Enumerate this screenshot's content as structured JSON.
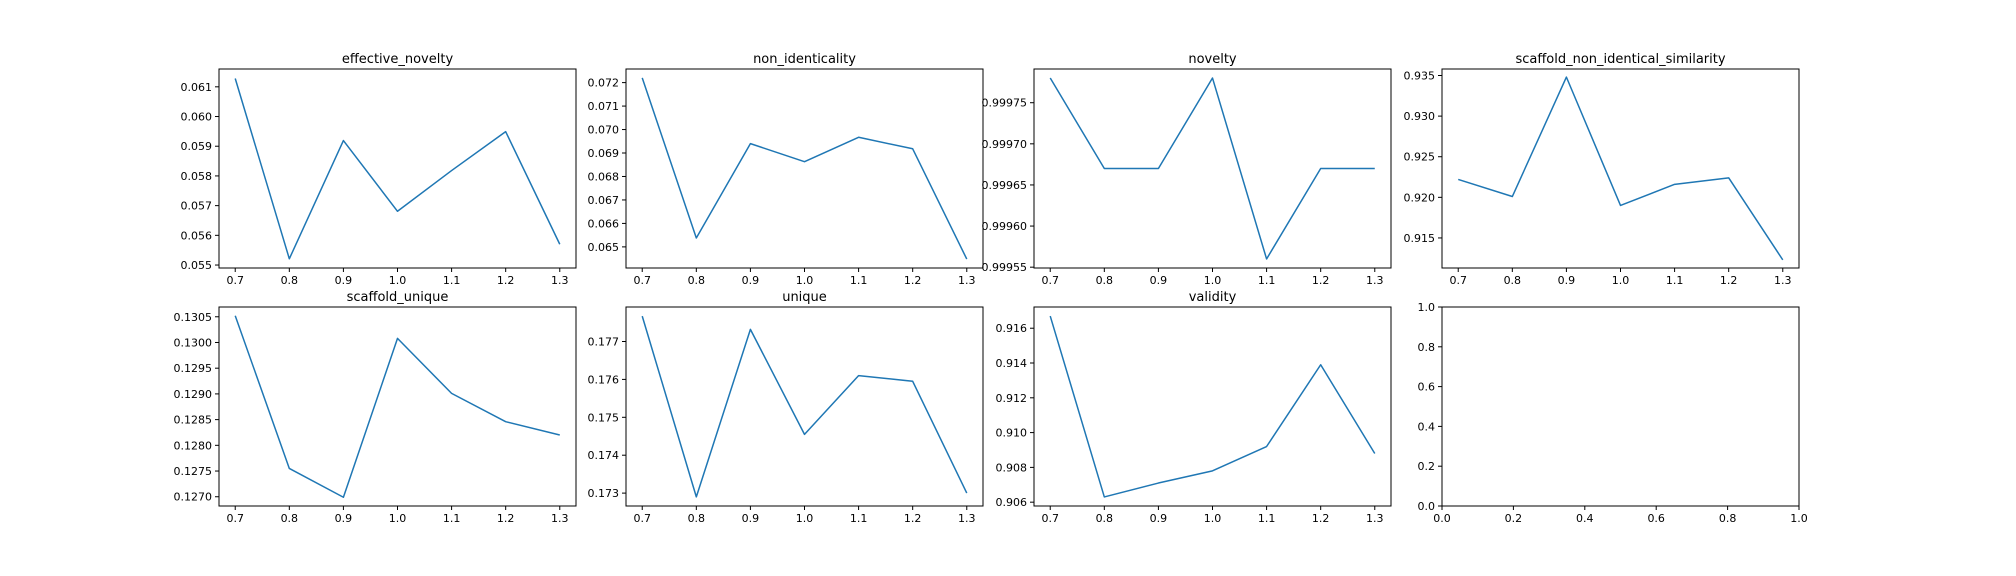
{
  "colors": {
    "line": "#1f77b4"
  },
  "chart_data": [
    {
      "type": "line",
      "title": "effective_novelty",
      "x": [
        0.7,
        0.8,
        0.9,
        1.0,
        1.1,
        1.2,
        1.3
      ],
      "values": [
        0.06128,
        0.05521,
        0.05919,
        0.05681,
        0.05818,
        0.05949,
        0.0557
      ],
      "xlim": [
        0.67,
        1.33
      ],
      "ylim": [
        0.0549,
        0.0616
      ],
      "xticks": [
        "0.7",
        "0.8",
        "0.9",
        "1.0",
        "1.1",
        "1.2",
        "1.3"
      ],
      "yticks": [
        "0.055",
        "0.056",
        "0.057",
        "0.058",
        "0.059",
        "0.060",
        "0.061"
      ],
      "ytick_values": [
        0.055,
        0.056,
        0.057,
        0.058,
        0.059,
        0.06,
        0.061
      ]
    },
    {
      "type": "line",
      "title": "non_identicality",
      "x": [
        0.7,
        0.8,
        0.9,
        1.0,
        1.1,
        1.2,
        1.3
      ],
      "values": [
        0.0722,
        0.06538,
        0.0694,
        0.06863,
        0.06967,
        0.06918,
        0.06448
      ],
      "xlim": [
        0.67,
        1.33
      ],
      "ylim": [
        0.0641,
        0.07258
      ],
      "xticks": [
        "0.7",
        "0.8",
        "0.9",
        "1.0",
        "1.1",
        "1.2",
        "1.3"
      ],
      "yticks": [
        "0.065",
        "0.066",
        "0.067",
        "0.068",
        "0.069",
        "0.070",
        "0.071",
        "0.072"
      ],
      "ytick_values": [
        0.065,
        0.066,
        0.067,
        0.068,
        0.069,
        0.07,
        0.071,
        0.072
      ]
    },
    {
      "type": "line",
      "title": "novelty",
      "x": [
        0.7,
        0.8,
        0.9,
        1.0,
        1.1,
        1.2,
        1.3
      ],
      "values": [
        0.99978,
        0.99967,
        0.99967,
        0.99978,
        0.99956,
        0.99967,
        0.99967
      ],
      "xlim": [
        0.67,
        1.33
      ],
      "ylim": [
        0.999549,
        0.999791
      ],
      "xticks": [
        "0.7",
        "0.8",
        "0.9",
        "1.0",
        "1.1",
        "1.2",
        "1.3"
      ],
      "yticks": [
        "0.99955",
        "0.99960",
        "0.99965",
        "0.99970",
        "0.99975"
      ],
      "ytick_values": [
        0.99955,
        0.9996,
        0.99965,
        0.9997,
        0.99975
      ]
    },
    {
      "type": "line",
      "title": "scaffold_non_identical_similarity",
      "x": [
        0.7,
        0.8,
        0.9,
        1.0,
        1.1,
        1.2,
        1.3
      ],
      "values": [
        0.9222,
        0.9201,
        0.9348,
        0.919,
        0.9216,
        0.9224,
        0.9123
      ],
      "xlim": [
        0.67,
        1.33
      ],
      "ylim": [
        0.9113,
        0.9358
      ],
      "xticks": [
        "0.7",
        "0.8",
        "0.9",
        "1.0",
        "1.1",
        "1.2",
        "1.3"
      ],
      "yticks": [
        "0.915",
        "0.920",
        "0.925",
        "0.930",
        "0.935"
      ],
      "ytick_values": [
        0.915,
        0.92,
        0.925,
        0.93,
        0.935
      ]
    },
    {
      "type": "line",
      "title": "scaffold_unique",
      "x": [
        0.7,
        0.8,
        0.9,
        1.0,
        1.1,
        1.2,
        1.3
      ],
      "values": [
        0.13052,
        0.12755,
        0.12699,
        0.13008,
        0.12901,
        0.12846,
        0.1282
      ],
      "xlim": [
        0.67,
        1.33
      ],
      "ylim": [
        0.12682,
        0.13069
      ],
      "xticks": [
        "0.7",
        "0.8",
        "0.9",
        "1.0",
        "1.1",
        "1.2",
        "1.3"
      ],
      "yticks": [
        "0.1270",
        "0.1275",
        "0.1280",
        "0.1285",
        "0.1290",
        "0.1295",
        "0.1300",
        "0.1305"
      ],
      "ytick_values": [
        0.127,
        0.1275,
        0.128,
        0.1285,
        0.129,
        0.1295,
        0.13,
        0.1305
      ]
    },
    {
      "type": "line",
      "title": "unique",
      "x": [
        0.7,
        0.8,
        0.9,
        1.0,
        1.1,
        1.2,
        1.3
      ],
      "values": [
        0.17767,
        0.1729,
        0.17732,
        0.17455,
        0.1761,
        0.17595,
        0.173
      ],
      "xlim": [
        0.67,
        1.33
      ],
      "ylim": [
        0.17266,
        0.17791
      ],
      "xticks": [
        "0.7",
        "0.8",
        "0.9",
        "1.0",
        "1.1",
        "1.2",
        "1.3"
      ],
      "yticks": [
        "0.173",
        "0.174",
        "0.175",
        "0.176",
        "0.177"
      ],
      "ytick_values": [
        0.173,
        0.174,
        0.175,
        0.176,
        0.177
      ]
    },
    {
      "type": "line",
      "title": "validity",
      "x": [
        0.7,
        0.8,
        0.9,
        1.0,
        1.1,
        1.2,
        1.3
      ],
      "values": [
        0.9167,
        0.9063,
        0.9071,
        0.9078,
        0.9092,
        0.9139,
        0.9088
      ],
      "xlim": [
        0.67,
        1.33
      ],
      "ylim": [
        0.90578,
        0.91722
      ],
      "xticks": [
        "0.7",
        "0.8",
        "0.9",
        "1.0",
        "1.1",
        "1.2",
        "1.3"
      ],
      "yticks": [
        "0.906",
        "0.908",
        "0.910",
        "0.912",
        "0.914",
        "0.916"
      ],
      "ytick_values": [
        0.906,
        0.908,
        0.91,
        0.912,
        0.914,
        0.916
      ]
    },
    {
      "type": "line",
      "title": "",
      "x": [],
      "values": [],
      "xlim": [
        0.0,
        1.0
      ],
      "ylim": [
        0.0,
        1.0
      ],
      "xticks": [
        "0.0",
        "0.2",
        "0.4",
        "0.6",
        "0.8",
        "1.0"
      ],
      "xtick_values": [
        0.0,
        0.2,
        0.4,
        0.6,
        0.8,
        1.0
      ],
      "yticks": [
        "0.0",
        "0.2",
        "0.4",
        "0.6",
        "0.8",
        "1.0"
      ],
      "ytick_values": [
        0.0,
        0.2,
        0.4,
        0.6,
        0.8,
        1.0
      ]
    }
  ]
}
